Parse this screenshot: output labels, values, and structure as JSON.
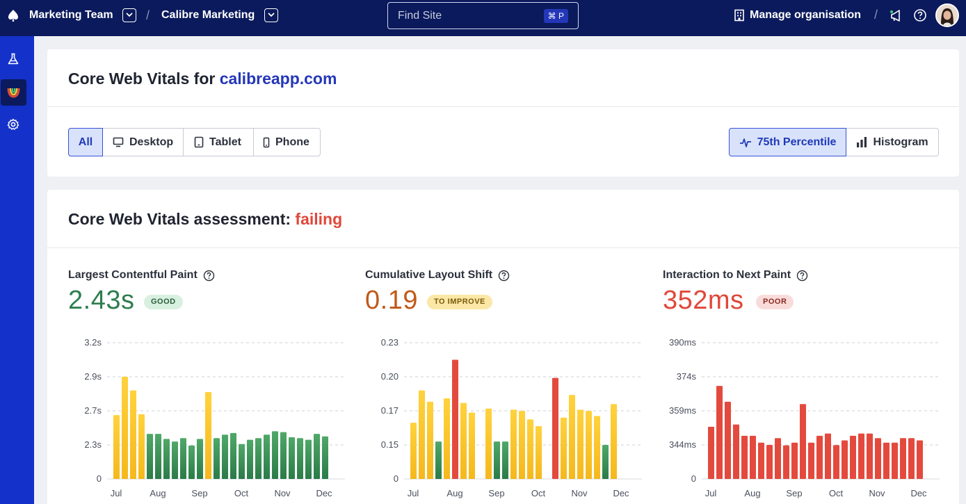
{
  "topbar": {
    "team": "Marketing Team",
    "site": "Calibre Marketing",
    "separator": "/",
    "search_placeholder": "Find Site",
    "search_shortcut": "⌘ P",
    "org_label": "Manage organisation"
  },
  "sidebar": {
    "items": [
      "flask-icon",
      "core-vitals-icon",
      "gear-icon"
    ],
    "active": 1
  },
  "vitals_header": {
    "title_prefix": "Core Web Vitals for",
    "domain": "calibreapp.com",
    "devices": [
      "All",
      "Desktop",
      "Tablet",
      "Phone"
    ],
    "views": [
      "75th Percentile",
      "Histogram"
    ],
    "selected_device": "All",
    "selected_view": "75th Percentile"
  },
  "assessment": {
    "prefix": "Core Web Vitals assessment:",
    "status": "failing"
  },
  "colors": {
    "good": "#2e8b50",
    "improve": "#f5c534",
    "poor": "#e0473a",
    "brand": "#2437b8"
  },
  "metrics": [
    {
      "label": "Largest Contentful Paint",
      "value": "2.43s",
      "badge": "GOOD",
      "status": "good"
    },
    {
      "label": "Cumulative Layout Shift",
      "value": "0.19",
      "badge": "TO IMPROVE",
      "status": "improve"
    },
    {
      "label": "Interaction to Next Paint",
      "value": "352ms",
      "badge": "POOR",
      "status": "poor"
    }
  ],
  "chart_data": [
    {
      "type": "bar",
      "title": "Largest Contentful Paint",
      "x_ticks": [
        "Jul",
        "Aug",
        "Sep",
        "Oct",
        "Nov",
        "Dec"
      ],
      "y_ticks": [
        "0",
        "2.3s",
        "2.7s",
        "2.9s",
        "3.2s"
      ],
      "ylim": [
        0,
        3.2
      ],
      "grid": true,
      "values": [
        2.65,
        2.9,
        2.82,
        2.66,
        2.43,
        2.43,
        2.37,
        2.34,
        2.38,
        2.26,
        2.37,
        2.81,
        2.38,
        2.42,
        2.44,
        2.31,
        2.36,
        2.38,
        2.42,
        2.46,
        2.45,
        2.39,
        2.38,
        2.36,
        2.43,
        2.4
      ],
      "status": [
        "improve",
        "improve",
        "improve",
        "improve",
        "good",
        "good",
        "good",
        "good",
        "good",
        "good",
        "good",
        "improve",
        "good",
        "good",
        "good",
        "good",
        "good",
        "good",
        "good",
        "good",
        "good",
        "good",
        "good",
        "good",
        "good",
        "good"
      ]
    },
    {
      "type": "bar",
      "title": "Cumulative Layout Shift",
      "x_ticks": [
        "Jul",
        "Aug",
        "Sep",
        "Oct",
        "Nov",
        "Dec"
      ],
      "y_ticks": [
        "0",
        "0.15",
        "0.17",
        "0.20",
        "0.23"
      ],
      "ylim": [
        0,
        0.23
      ],
      "grid": true,
      "values": [
        0.163,
        0.188,
        0.178,
        0.152,
        0.181,
        0.215,
        0.177,
        0.169,
        null,
        0.172,
        0.152,
        0.152,
        0.171,
        0.17,
        0.165,
        0.161,
        null,
        0.199,
        0.166,
        0.184,
        0.171,
        0.17,
        0.167,
        0.15,
        0.176
      ],
      "status": [
        "improve",
        "improve",
        "improve",
        "good",
        "improve",
        "poor",
        "improve",
        "improve",
        null,
        "improve",
        "good",
        "good",
        "improve",
        "improve",
        "improve",
        "improve",
        null,
        "poor",
        "improve",
        "improve",
        "improve",
        "improve",
        "improve",
        "good",
        "improve"
      ]
    },
    {
      "type": "bar",
      "title": "Interaction to Next Paint",
      "x_ticks": [
        "Jul",
        "Aug",
        "Sep",
        "Oct",
        "Nov",
        "Dec"
      ],
      "y_ticks": [
        "0",
        "344ms",
        "359ms",
        "374s",
        "390ms"
      ],
      "ylim": [
        0,
        390
      ],
      "grid": true,
      "values": [
        352,
        370,
        363,
        353,
        348,
        348,
        345,
        344,
        347,
        340,
        345,
        362,
        345,
        348,
        349,
        342,
        346,
        348,
        349,
        349,
        347,
        345,
        345,
        347,
        347,
        346
      ],
      "status": [
        "poor",
        "poor",
        "poor",
        "poor",
        "poor",
        "poor",
        "poor",
        "poor",
        "poor",
        "poor",
        "poor",
        "poor",
        "poor",
        "poor",
        "poor",
        "poor",
        "poor",
        "poor",
        "poor",
        "poor",
        "poor",
        "poor",
        "poor",
        "poor",
        "poor",
        "poor"
      ]
    }
  ]
}
